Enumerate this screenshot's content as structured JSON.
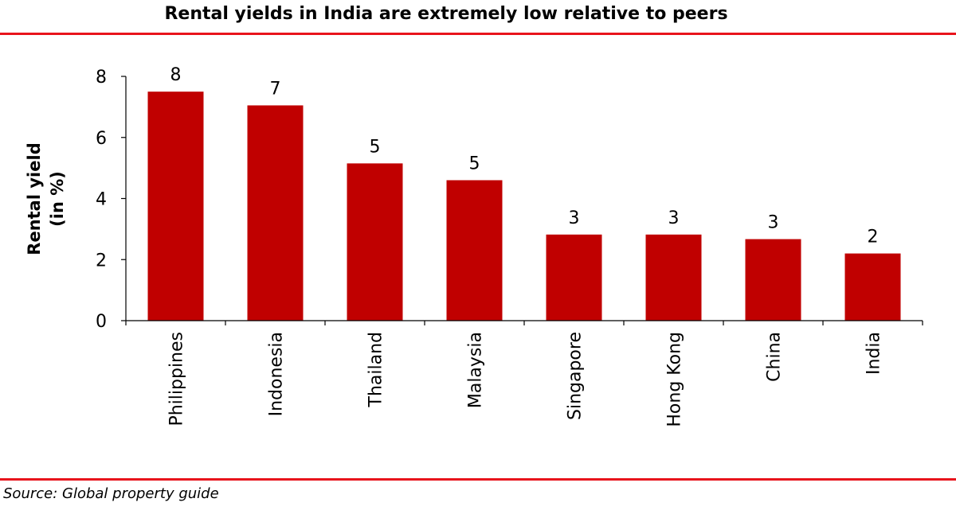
{
  "chart_data": {
    "type": "bar",
    "title": "Rental yields in India are extremely low relative to peers",
    "categories": [
      "Philippines",
      "Indonesia",
      "Thailand",
      "Malaysia",
      "Singapore",
      "Hong Kong",
      "China",
      "India"
    ],
    "values": [
      7.5,
      7.05,
      5.15,
      4.6,
      2.82,
      2.82,
      2.67,
      2.2
    ],
    "data_labels": [
      "8",
      "7",
      "5",
      "5",
      "3",
      "3",
      "3",
      "2"
    ],
    "ylabel": "Rental yield",
    "ylabel_unit": "(in %)",
    "xlabel": "",
    "ylim": [
      0,
      8
    ],
    "yticks": [
      0,
      2,
      4,
      6,
      8
    ],
    "grid": false,
    "bar_color": "#c00000"
  },
  "source": "Source: Global property guide",
  "colors": {
    "accent_rule": "#e8141c",
    "bar": "#c00000"
  }
}
